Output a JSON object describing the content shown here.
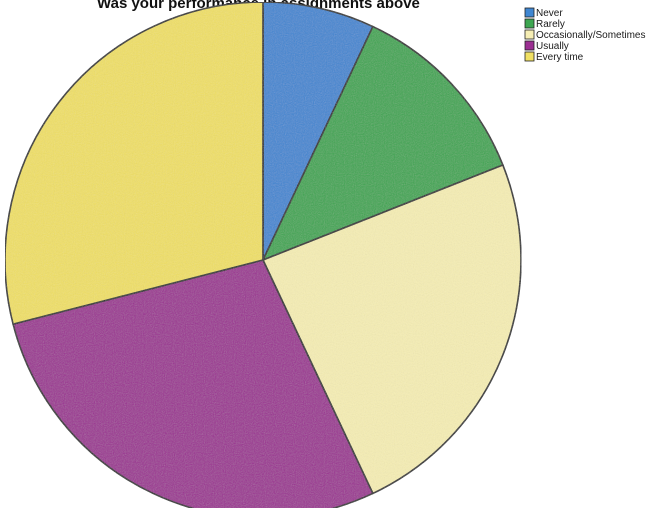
{
  "chart_data": {
    "type": "pie",
    "title": "Was your performance in assignments above",
    "categories": [
      "Never",
      "Rarely",
      "Occasionally/Sometimes",
      "Usually",
      "Every time"
    ],
    "values": [
      7,
      12,
      24,
      28,
      29
    ],
    "units": "percent",
    "colors": [
      "#3f86d1",
      "#3da651",
      "#f6eeb4",
      "#9b2f92",
      "#f0e063"
    ],
    "legend_position": "top-right"
  }
}
